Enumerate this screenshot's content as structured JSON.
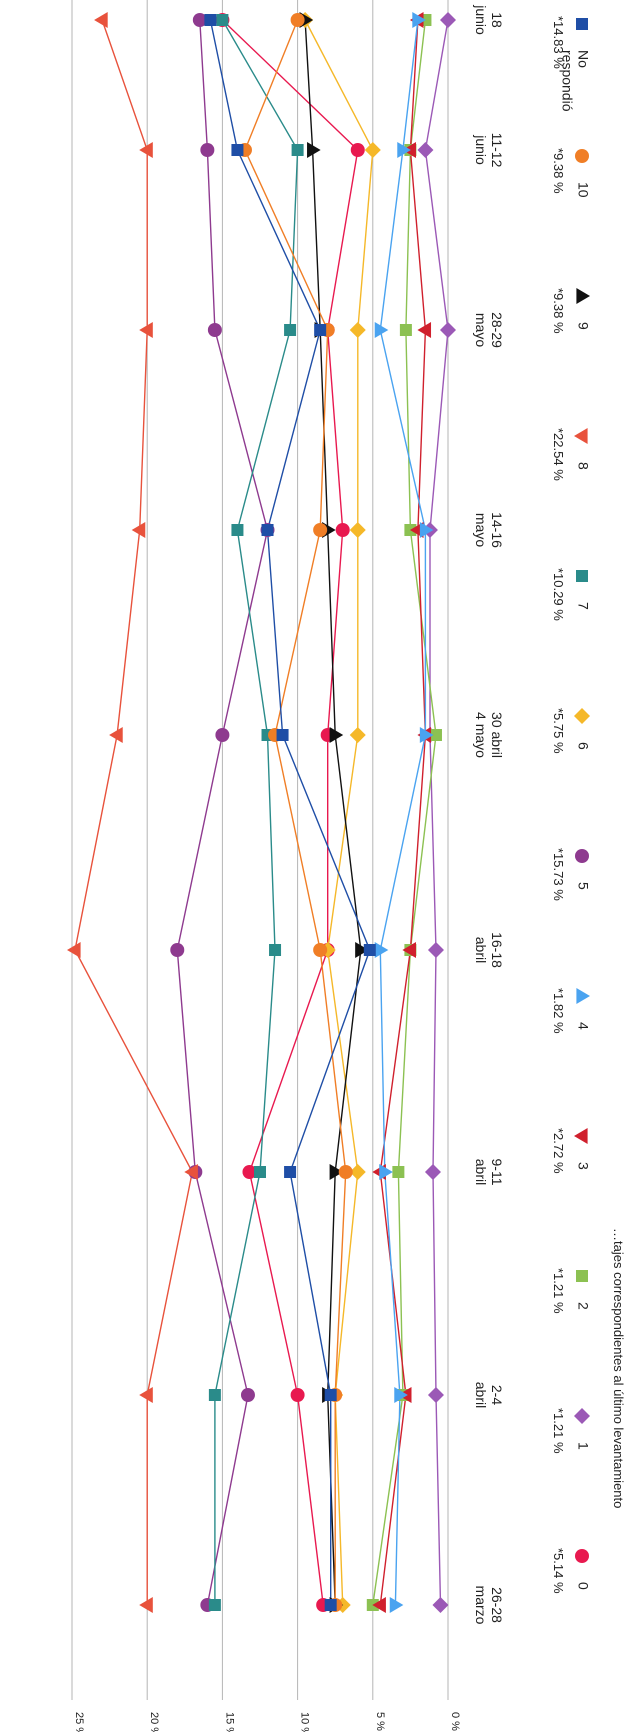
{
  "chart_data": {
    "type": "line",
    "orientation": "rotated-90-clockwise",
    "categories": [
      [
        "26-28",
        "marzo"
      ],
      [
        "2-4",
        "abril"
      ],
      [
        "9-11",
        "abril"
      ],
      [
        "16-18",
        "abril"
      ],
      [
        "30 abril",
        "4 mayo"
      ],
      [
        "14-16",
        "mayo"
      ],
      [
        "28-29",
        "mayo"
      ],
      [
        "11-12",
        "junio"
      ],
      [
        "18",
        "junio"
      ]
    ],
    "y_ticks": [
      "0 %",
      "5 %",
      "10 %",
      "15 %",
      "20 %",
      "25 %"
    ],
    "ylim": [
      0,
      25
    ],
    "grid": true,
    "legend_position": "bottom",
    "note": "…tajes correspondientes al último levantamiento",
    "series": [
      {
        "name": "0",
        "value_label": "*5.14 %",
        "color": "#e8194f",
        "marker": "circle",
        "values": [
          8.3,
          10.0,
          13.2,
          8.0,
          8.0,
          7.0,
          8.0,
          6.0,
          15.0
        ]
      },
      {
        "name": "1",
        "value_label": "*1.21 %",
        "color": "#9b59b6",
        "marker": "diamond",
        "values": [
          0.5,
          0.8,
          1.0,
          0.8,
          1.2,
          1.2,
          0.0,
          1.5,
          0.0
        ]
      },
      {
        "name": "2",
        "value_label": "*1.21 %",
        "color": "#8cc152",
        "marker": "square",
        "values": [
          5.0,
          3.0,
          3.3,
          2.5,
          0.8,
          2.5,
          2.8,
          2.5,
          1.5
        ]
      },
      {
        "name": "3",
        "value_label": "*2.72 %",
        "color": "#d0202d",
        "marker": "triangle-up",
        "values": [
          4.5,
          2.8,
          4.5,
          2.5,
          1.5,
          2.0,
          1.5,
          2.5,
          2.0
        ]
      },
      {
        "name": "4",
        "value_label": "*1.82 %",
        "color": "#4aa3f0",
        "marker": "triangle-down",
        "values": [
          3.5,
          3.2,
          4.2,
          4.5,
          1.5,
          1.5,
          4.5,
          3.0,
          2.0
        ]
      },
      {
        "name": "5",
        "value_label": "*15.73 %",
        "color": "#8e3a8f",
        "marker": "circle",
        "values": [
          16.0,
          13.3,
          16.8,
          18.0,
          15.0,
          12.0,
          15.5,
          16.0,
          16.5
        ]
      },
      {
        "name": "6",
        "value_label": "*5.75 %",
        "color": "#f5b829",
        "marker": "diamond",
        "values": [
          7.0,
          7.5,
          6.0,
          8.0,
          6.0,
          6.0,
          6.0,
          5.0,
          9.5
        ]
      },
      {
        "name": "7",
        "value_label": "*10.29 %",
        "color": "#2a8b8a",
        "marker": "square",
        "values": [
          15.5,
          15.5,
          12.5,
          11.5,
          12.0,
          14.0,
          10.5,
          10.0,
          15.0
        ]
      },
      {
        "name": "8",
        "value_label": "*22.54 %",
        "color": "#e8523c",
        "marker": "triangle-up",
        "values": [
          20.0,
          20.0,
          17.0,
          24.8,
          22.0,
          20.5,
          20.0,
          20.0,
          23.0
        ]
      },
      {
        "name": "9",
        "value_label": "*9.38 %",
        "color": "#111111",
        "marker": "triangle-down",
        "values": [
          7.5,
          8.0,
          7.5,
          5.8,
          7.5,
          8.0,
          8.5,
          9.0,
          9.5
        ]
      },
      {
        "name": "10",
        "value_label": "*9.38 %",
        "color": "#f07e26",
        "marker": "circle",
        "values": [
          7.5,
          7.5,
          6.8,
          8.5,
          11.5,
          8.5,
          8.0,
          13.5,
          10.0
        ]
      },
      {
        "name": "No\nrespondió",
        "value_label": "*14.83 %",
        "color": "#1f4ea6",
        "marker": "square",
        "values": [
          7.8,
          7.8,
          10.5,
          5.2,
          11.0,
          12.0,
          8.5,
          14.0,
          15.8
        ]
      }
    ]
  }
}
